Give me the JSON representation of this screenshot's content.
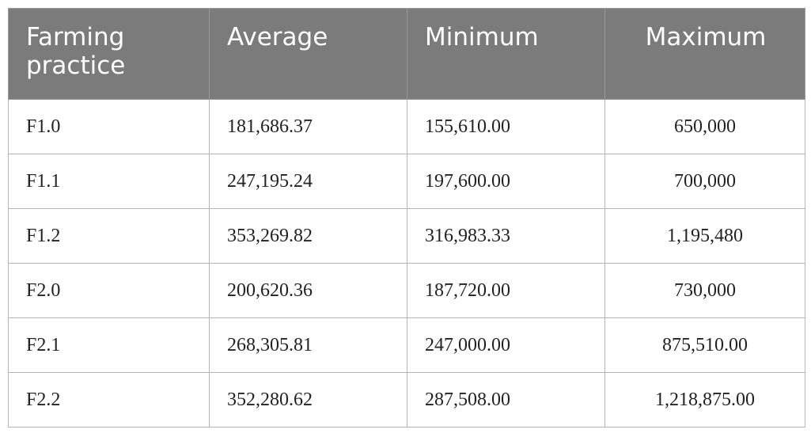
{
  "table": {
    "headers": [
      "Farming practice",
      "Average",
      "Minimum",
      "Maximum"
    ],
    "rows": [
      [
        "F1.0",
        "181,686.37",
        "155,610.00",
        "650,000"
      ],
      [
        "F1.1",
        "247,195.24",
        "197,600.00",
        "700,000"
      ],
      [
        "F1.2",
        "353,269.82",
        "316,983.33",
        "1,195,480"
      ],
      [
        "F2.0",
        "200,620.36",
        "187,720.00",
        "730,000"
      ],
      [
        "F2.1",
        "268,305.81",
        "247,000.00",
        "875,510.00"
      ],
      [
        "F2.2",
        "352,280.62",
        "287,508.00",
        "1,218,875.00"
      ]
    ]
  },
  "colors": {
    "header_bg": "#7b7b7b",
    "header_text": "#ffffff",
    "grid": "#b5b5b5"
  }
}
